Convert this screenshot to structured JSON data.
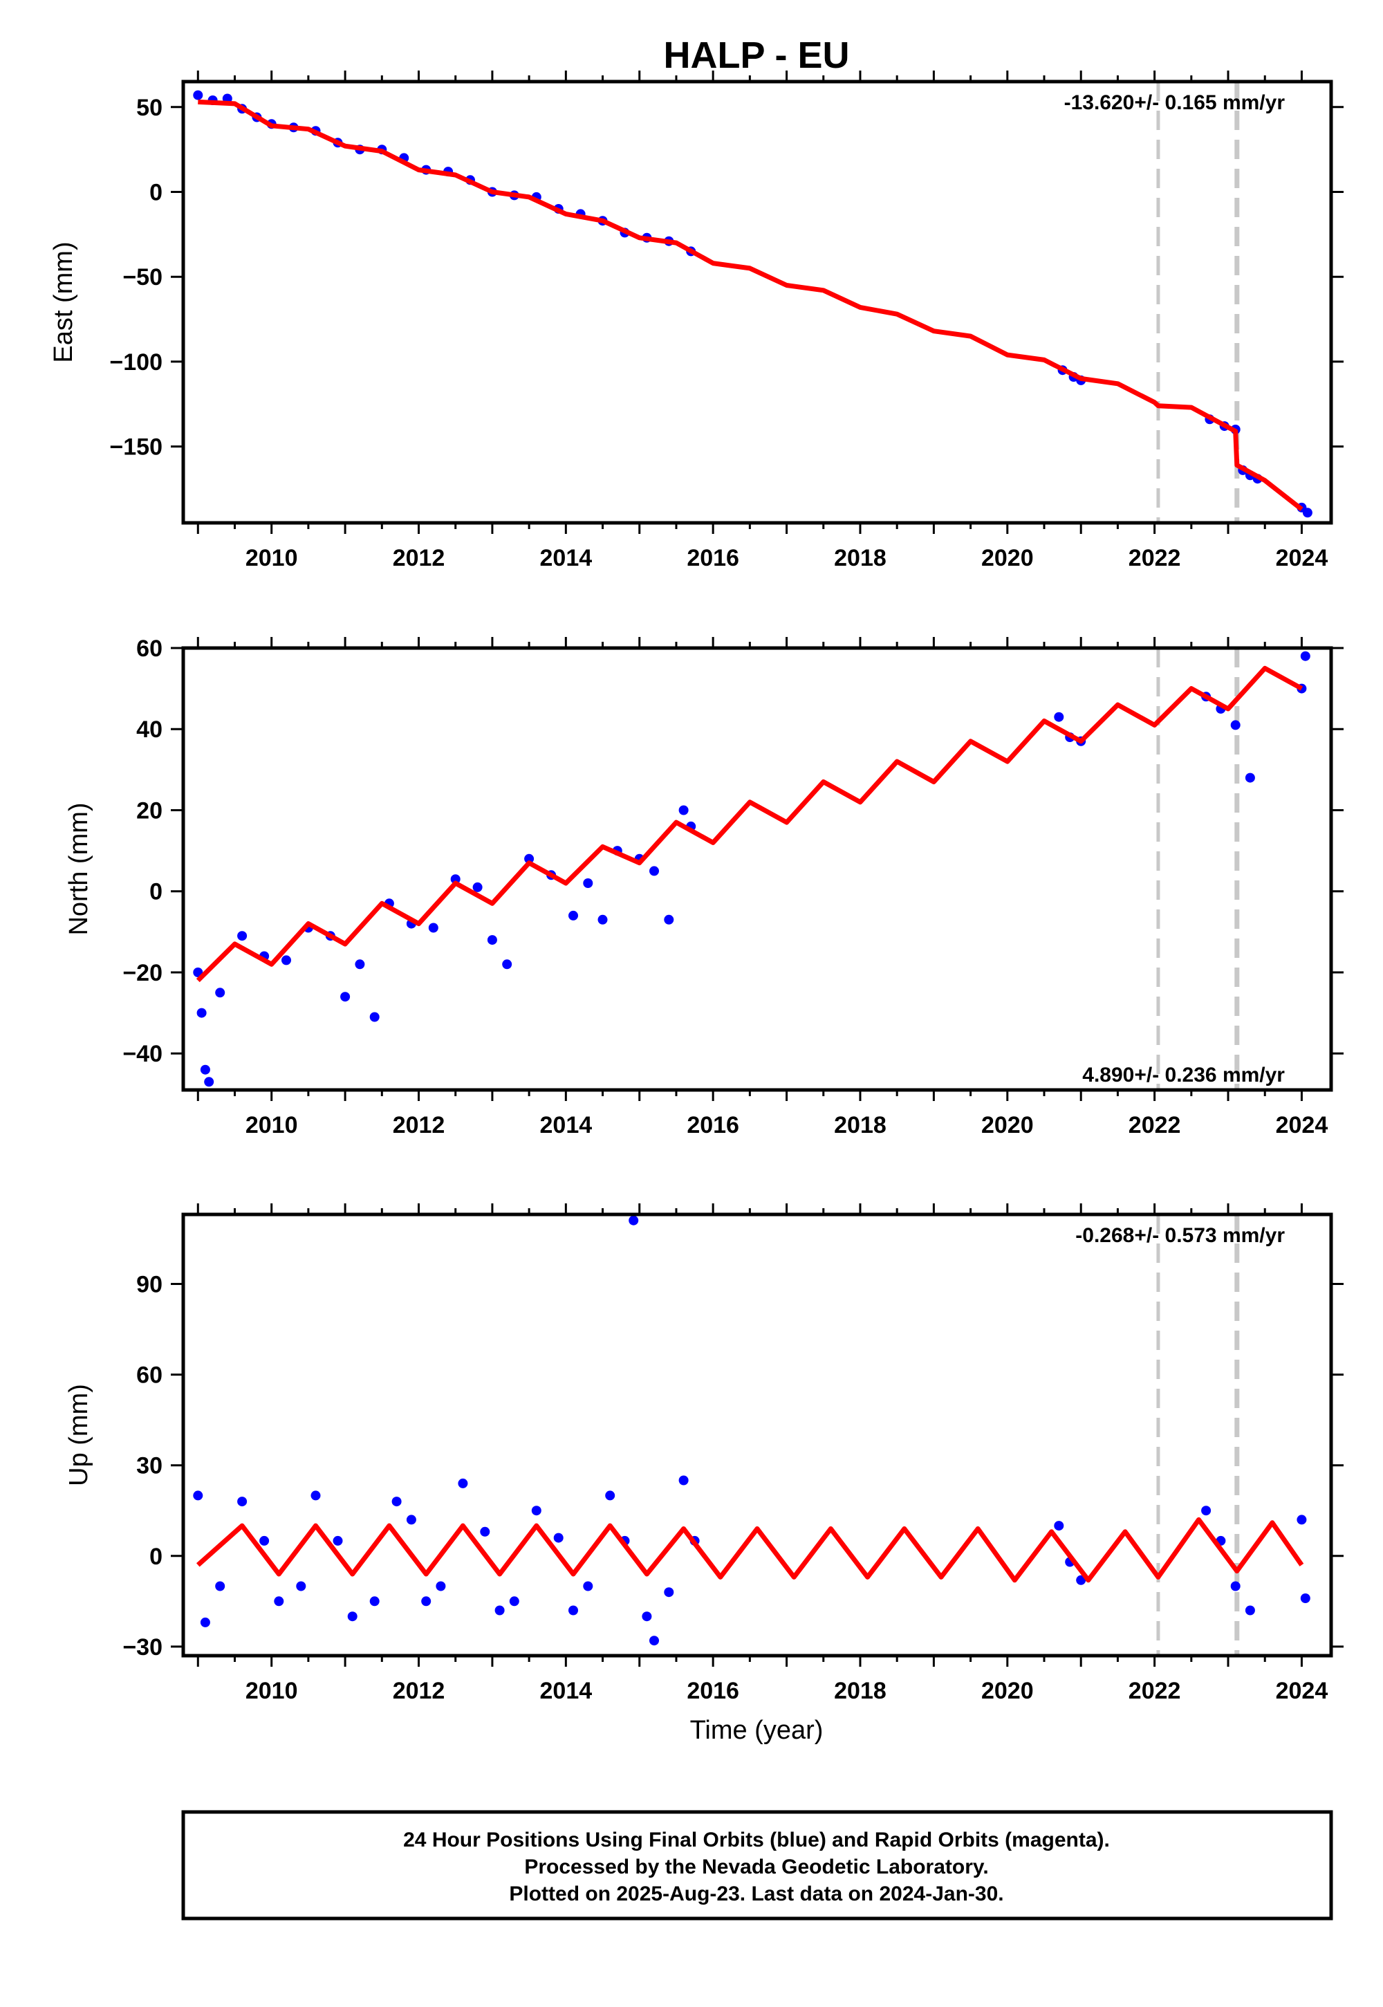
{
  "chart_data": {
    "type": "scatter",
    "title": "HALP - EU",
    "xlabel": "Time (year)",
    "xlim": [
      2008.8,
      2024.4
    ],
    "x_ticks": [
      2010,
      2012,
      2014,
      2016,
      2018,
      2020,
      2022,
      2024
    ],
    "x_tick_labels": [
      "2010",
      "2012",
      "2014",
      "2016",
      "2018",
      "2020",
      "2022",
      "2024"
    ],
    "event_lines": [
      2022.05,
      2023.12
    ],
    "colors": {
      "data": "#0000ff",
      "model": "#ff0000",
      "event": "#c8c8c8"
    },
    "panels": [
      {
        "name": "east",
        "ylabel": "East (mm)",
        "ylim": [
          -195,
          65
        ],
        "y_ticks": [
          50,
          0,
          -50,
          -100,
          -150
        ],
        "y_tick_labels": [
          "50",
          "0",
          "−50",
          "−100",
          "−150"
        ],
        "rate_text": "-13.620+/- 0.165 mm/yr",
        "rate_position": "top-right",
        "model_points": [
          [
            2009.0,
            53
          ],
          [
            2009.5,
            52
          ],
          [
            2010.0,
            39
          ],
          [
            2010.5,
            37
          ],
          [
            2011.0,
            27
          ],
          [
            2011.5,
            24
          ],
          [
            2012.0,
            13
          ],
          [
            2012.5,
            10
          ],
          [
            2013.0,
            0
          ],
          [
            2013.5,
            -3
          ],
          [
            2014.0,
            -13
          ],
          [
            2014.5,
            -17
          ],
          [
            2015.0,
            -27
          ],
          [
            2015.5,
            -30
          ],
          [
            2016.0,
            -42
          ],
          [
            2016.5,
            -45
          ],
          [
            2017.0,
            -55
          ],
          [
            2017.5,
            -58
          ],
          [
            2018.0,
            -68
          ],
          [
            2018.5,
            -72
          ],
          [
            2019.0,
            -82
          ],
          [
            2019.5,
            -85
          ],
          [
            2020.0,
            -96
          ],
          [
            2020.5,
            -99
          ],
          [
            2021.0,
            -110
          ],
          [
            2021.5,
            -113
          ],
          [
            2022.0,
            -124
          ],
          [
            2022.05,
            -126
          ],
          [
            2022.5,
            -127
          ],
          [
            2023.1,
            -141
          ],
          [
            2023.12,
            -161
          ],
          [
            2023.5,
            -170
          ],
          [
            2024.0,
            -187
          ]
        ],
        "observations": [
          [
            2009.0,
            57
          ],
          [
            2009.2,
            54
          ],
          [
            2009.4,
            55
          ],
          [
            2009.6,
            49
          ],
          [
            2009.8,
            44
          ],
          [
            2010.0,
            40
          ],
          [
            2010.3,
            38
          ],
          [
            2010.6,
            36
          ],
          [
            2010.9,
            29
          ],
          [
            2011.2,
            25
          ],
          [
            2011.5,
            25
          ],
          [
            2011.8,
            20
          ],
          [
            2012.1,
            13
          ],
          [
            2012.4,
            12
          ],
          [
            2012.7,
            7
          ],
          [
            2013.0,
            0
          ],
          [
            2013.3,
            -2
          ],
          [
            2013.6,
            -3
          ],
          [
            2013.9,
            -10
          ],
          [
            2014.2,
            -13
          ],
          [
            2014.5,
            -17
          ],
          [
            2014.8,
            -24
          ],
          [
            2015.1,
            -27
          ],
          [
            2015.4,
            -29
          ],
          [
            2015.7,
            -35
          ],
          [
            2020.75,
            -105
          ],
          [
            2020.9,
            -109
          ],
          [
            2021.0,
            -111
          ],
          [
            2022.75,
            -134
          ],
          [
            2022.95,
            -138
          ],
          [
            2023.1,
            -140
          ],
          [
            2023.2,
            -164
          ],
          [
            2023.3,
            -167
          ],
          [
            2023.4,
            -169
          ],
          [
            2024.0,
            -186
          ],
          [
            2024.08,
            -189
          ]
        ]
      },
      {
        "name": "north",
        "ylabel": "North (mm)",
        "ylim": [
          -49,
          60
        ],
        "y_ticks": [
          60,
          40,
          20,
          0,
          -20,
          -40
        ],
        "y_tick_labels": [
          "60",
          "40",
          "20",
          "0",
          "−20",
          "−40"
        ],
        "rate_text": "4.890+/- 0.236 mm/yr",
        "rate_position": "bottom-right",
        "model_points": [
          [
            2009.0,
            -22
          ],
          [
            2009.5,
            -13
          ],
          [
            2010.0,
            -18
          ],
          [
            2010.5,
            -8
          ],
          [
            2011.0,
            -13
          ],
          [
            2011.5,
            -3
          ],
          [
            2012.0,
            -8
          ],
          [
            2012.5,
            2
          ],
          [
            2013.0,
            -3
          ],
          [
            2013.5,
            7
          ],
          [
            2014.0,
            2
          ],
          [
            2014.5,
            11
          ],
          [
            2015.0,
            7
          ],
          [
            2015.5,
            17
          ],
          [
            2016.0,
            12
          ],
          [
            2016.5,
            22
          ],
          [
            2017.0,
            17
          ],
          [
            2017.5,
            27
          ],
          [
            2018.0,
            22
          ],
          [
            2018.5,
            32
          ],
          [
            2019.0,
            27
          ],
          [
            2019.5,
            37
          ],
          [
            2020.0,
            32
          ],
          [
            2020.5,
            42
          ],
          [
            2021.0,
            37
          ],
          [
            2021.5,
            46
          ],
          [
            2022.0,
            41
          ],
          [
            2022.5,
            50
          ],
          [
            2023.0,
            45
          ],
          [
            2023.5,
            55
          ],
          [
            2024.0,
            50
          ]
        ],
        "observations": [
          [
            2009.0,
            -20
          ],
          [
            2009.05,
            -30
          ],
          [
            2009.1,
            -44
          ],
          [
            2009.15,
            -47
          ],
          [
            2009.3,
            -25
          ],
          [
            2009.6,
            -11
          ],
          [
            2009.9,
            -16
          ],
          [
            2010.2,
            -17
          ],
          [
            2010.5,
            -9
          ],
          [
            2010.8,
            -11
          ],
          [
            2011.0,
            -26
          ],
          [
            2011.2,
            -18
          ],
          [
            2011.4,
            -31
          ],
          [
            2011.6,
            -3
          ],
          [
            2011.9,
            -8
          ],
          [
            2012.2,
            -9
          ],
          [
            2012.5,
            3
          ],
          [
            2012.8,
            1
          ],
          [
            2013.0,
            -12
          ],
          [
            2013.2,
            -18
          ],
          [
            2013.5,
            8
          ],
          [
            2013.8,
            4
          ],
          [
            2014.1,
            -6
          ],
          [
            2014.3,
            2
          ],
          [
            2014.5,
            -7
          ],
          [
            2014.7,
            10
          ],
          [
            2015.0,
            8
          ],
          [
            2015.2,
            5
          ],
          [
            2015.4,
            -7
          ],
          [
            2015.6,
            20
          ],
          [
            2015.7,
            16
          ],
          [
            2020.7,
            43
          ],
          [
            2020.85,
            38
          ],
          [
            2021.0,
            37
          ],
          [
            2022.7,
            48
          ],
          [
            2022.9,
            45
          ],
          [
            2023.1,
            41
          ],
          [
            2023.3,
            28
          ],
          [
            2024.0,
            50
          ],
          [
            2024.05,
            58
          ]
        ]
      },
      {
        "name": "up",
        "ylabel": "Up (mm)",
        "ylim": [
          -33,
          113
        ],
        "y_ticks": [
          90,
          60,
          30,
          0,
          -30
        ],
        "y_tick_labels": [
          "90",
          "60",
          "30",
          "0",
          "−30"
        ],
        "rate_text": "-0.268+/- 0.573 mm/yr",
        "rate_position": "top-right",
        "model_points": [
          [
            2009.0,
            -3
          ],
          [
            2009.6,
            10
          ],
          [
            2010.1,
            -6
          ],
          [
            2010.6,
            10
          ],
          [
            2011.1,
            -6
          ],
          [
            2011.6,
            10
          ],
          [
            2012.1,
            -6
          ],
          [
            2012.6,
            10
          ],
          [
            2013.1,
            -6
          ],
          [
            2013.6,
            10
          ],
          [
            2014.1,
            -6
          ],
          [
            2014.6,
            10
          ],
          [
            2015.1,
            -6
          ],
          [
            2015.6,
            9
          ],
          [
            2016.1,
            -7
          ],
          [
            2016.6,
            9
          ],
          [
            2017.1,
            -7
          ],
          [
            2017.6,
            9
          ],
          [
            2018.1,
            -7
          ],
          [
            2018.6,
            9
          ],
          [
            2019.1,
            -7
          ],
          [
            2019.6,
            9
          ],
          [
            2020.1,
            -8
          ],
          [
            2020.6,
            8
          ],
          [
            2021.1,
            -8
          ],
          [
            2021.6,
            8
          ],
          [
            2022.05,
            -7
          ],
          [
            2022.6,
            12
          ],
          [
            2023.12,
            -5
          ],
          [
            2023.6,
            11
          ],
          [
            2024.0,
            -3
          ]
        ],
        "observations": [
          [
            2009.0,
            20
          ],
          [
            2009.1,
            -22
          ],
          [
            2009.3,
            -10
          ],
          [
            2009.6,
            18
          ],
          [
            2009.9,
            5
          ],
          [
            2010.1,
            -15
          ],
          [
            2010.4,
            -10
          ],
          [
            2010.6,
            20
          ],
          [
            2010.9,
            5
          ],
          [
            2011.1,
            -20
          ],
          [
            2011.4,
            -15
          ],
          [
            2011.7,
            18
          ],
          [
            2011.9,
            12
          ],
          [
            2012.1,
            -15
          ],
          [
            2012.3,
            -10
          ],
          [
            2012.6,
            24
          ],
          [
            2012.9,
            8
          ],
          [
            2013.1,
            -18
          ],
          [
            2013.3,
            -15
          ],
          [
            2013.6,
            15
          ],
          [
            2013.9,
            6
          ],
          [
            2014.1,
            -18
          ],
          [
            2014.3,
            -10
          ],
          [
            2014.6,
            20
          ],
          [
            2014.8,
            5
          ],
          [
            2014.92,
            111
          ],
          [
            2015.1,
            -20
          ],
          [
            2015.2,
            -28
          ],
          [
            2015.4,
            -12
          ],
          [
            2015.6,
            25
          ],
          [
            2015.75,
            5
          ],
          [
            2020.7,
            10
          ],
          [
            2020.85,
            -2
          ],
          [
            2021.0,
            -8
          ],
          [
            2022.7,
            15
          ],
          [
            2022.9,
            5
          ],
          [
            2023.1,
            -10
          ],
          [
            2023.3,
            -18
          ],
          [
            2024.0,
            12
          ],
          [
            2024.05,
            -14
          ]
        ]
      }
    ],
    "footer_lines": [
      "24 Hour Positions Using Final Orbits (blue) and Rapid Orbits (magenta).",
      "Processed by the Nevada Geodetic Laboratory.",
      "Plotted on 2025-Aug-23. Last data on 2024-Jan-30."
    ]
  }
}
